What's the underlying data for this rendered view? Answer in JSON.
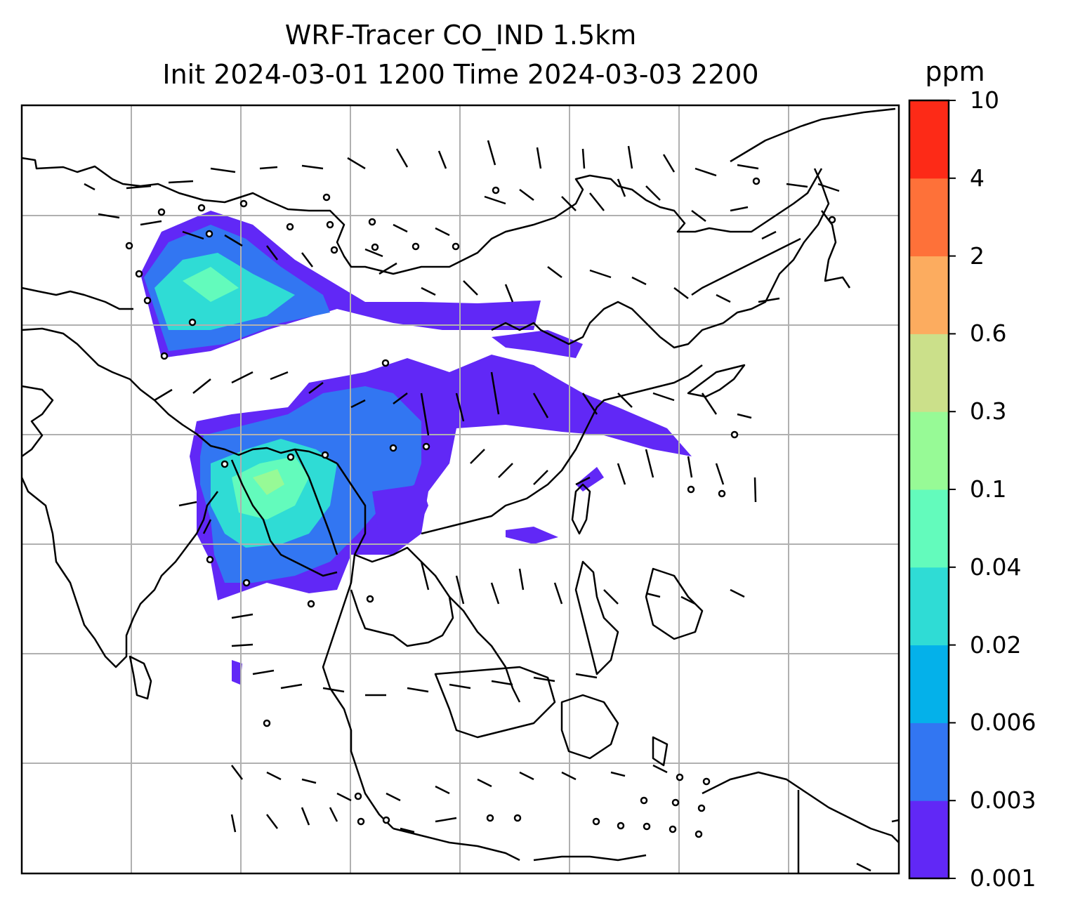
{
  "title_line1": "WRF-Tracer CO_IND 1.5km",
  "title_line2": "Init 2024-03-01 1200 Time 2024-03-03 2200",
  "colorbar": {
    "unit": "ppm",
    "ticks": [
      "0.001",
      "0.003",
      "0.006",
      "0.02",
      "0.04",
      "0.1",
      "0.3",
      "0.6",
      "2",
      "4",
      "10"
    ],
    "colors": [
      "#6128f6",
      "#3276f2",
      "#04b1ea",
      "#2fdcd5",
      "#63fbbc",
      "#97fa96",
      "#cbe08a",
      "#fcac5f",
      "#fe7139",
      "#fd2a17"
    ]
  },
  "colors": {
    "grid": "#b0b0b0",
    "coast": "#000000"
  }
}
